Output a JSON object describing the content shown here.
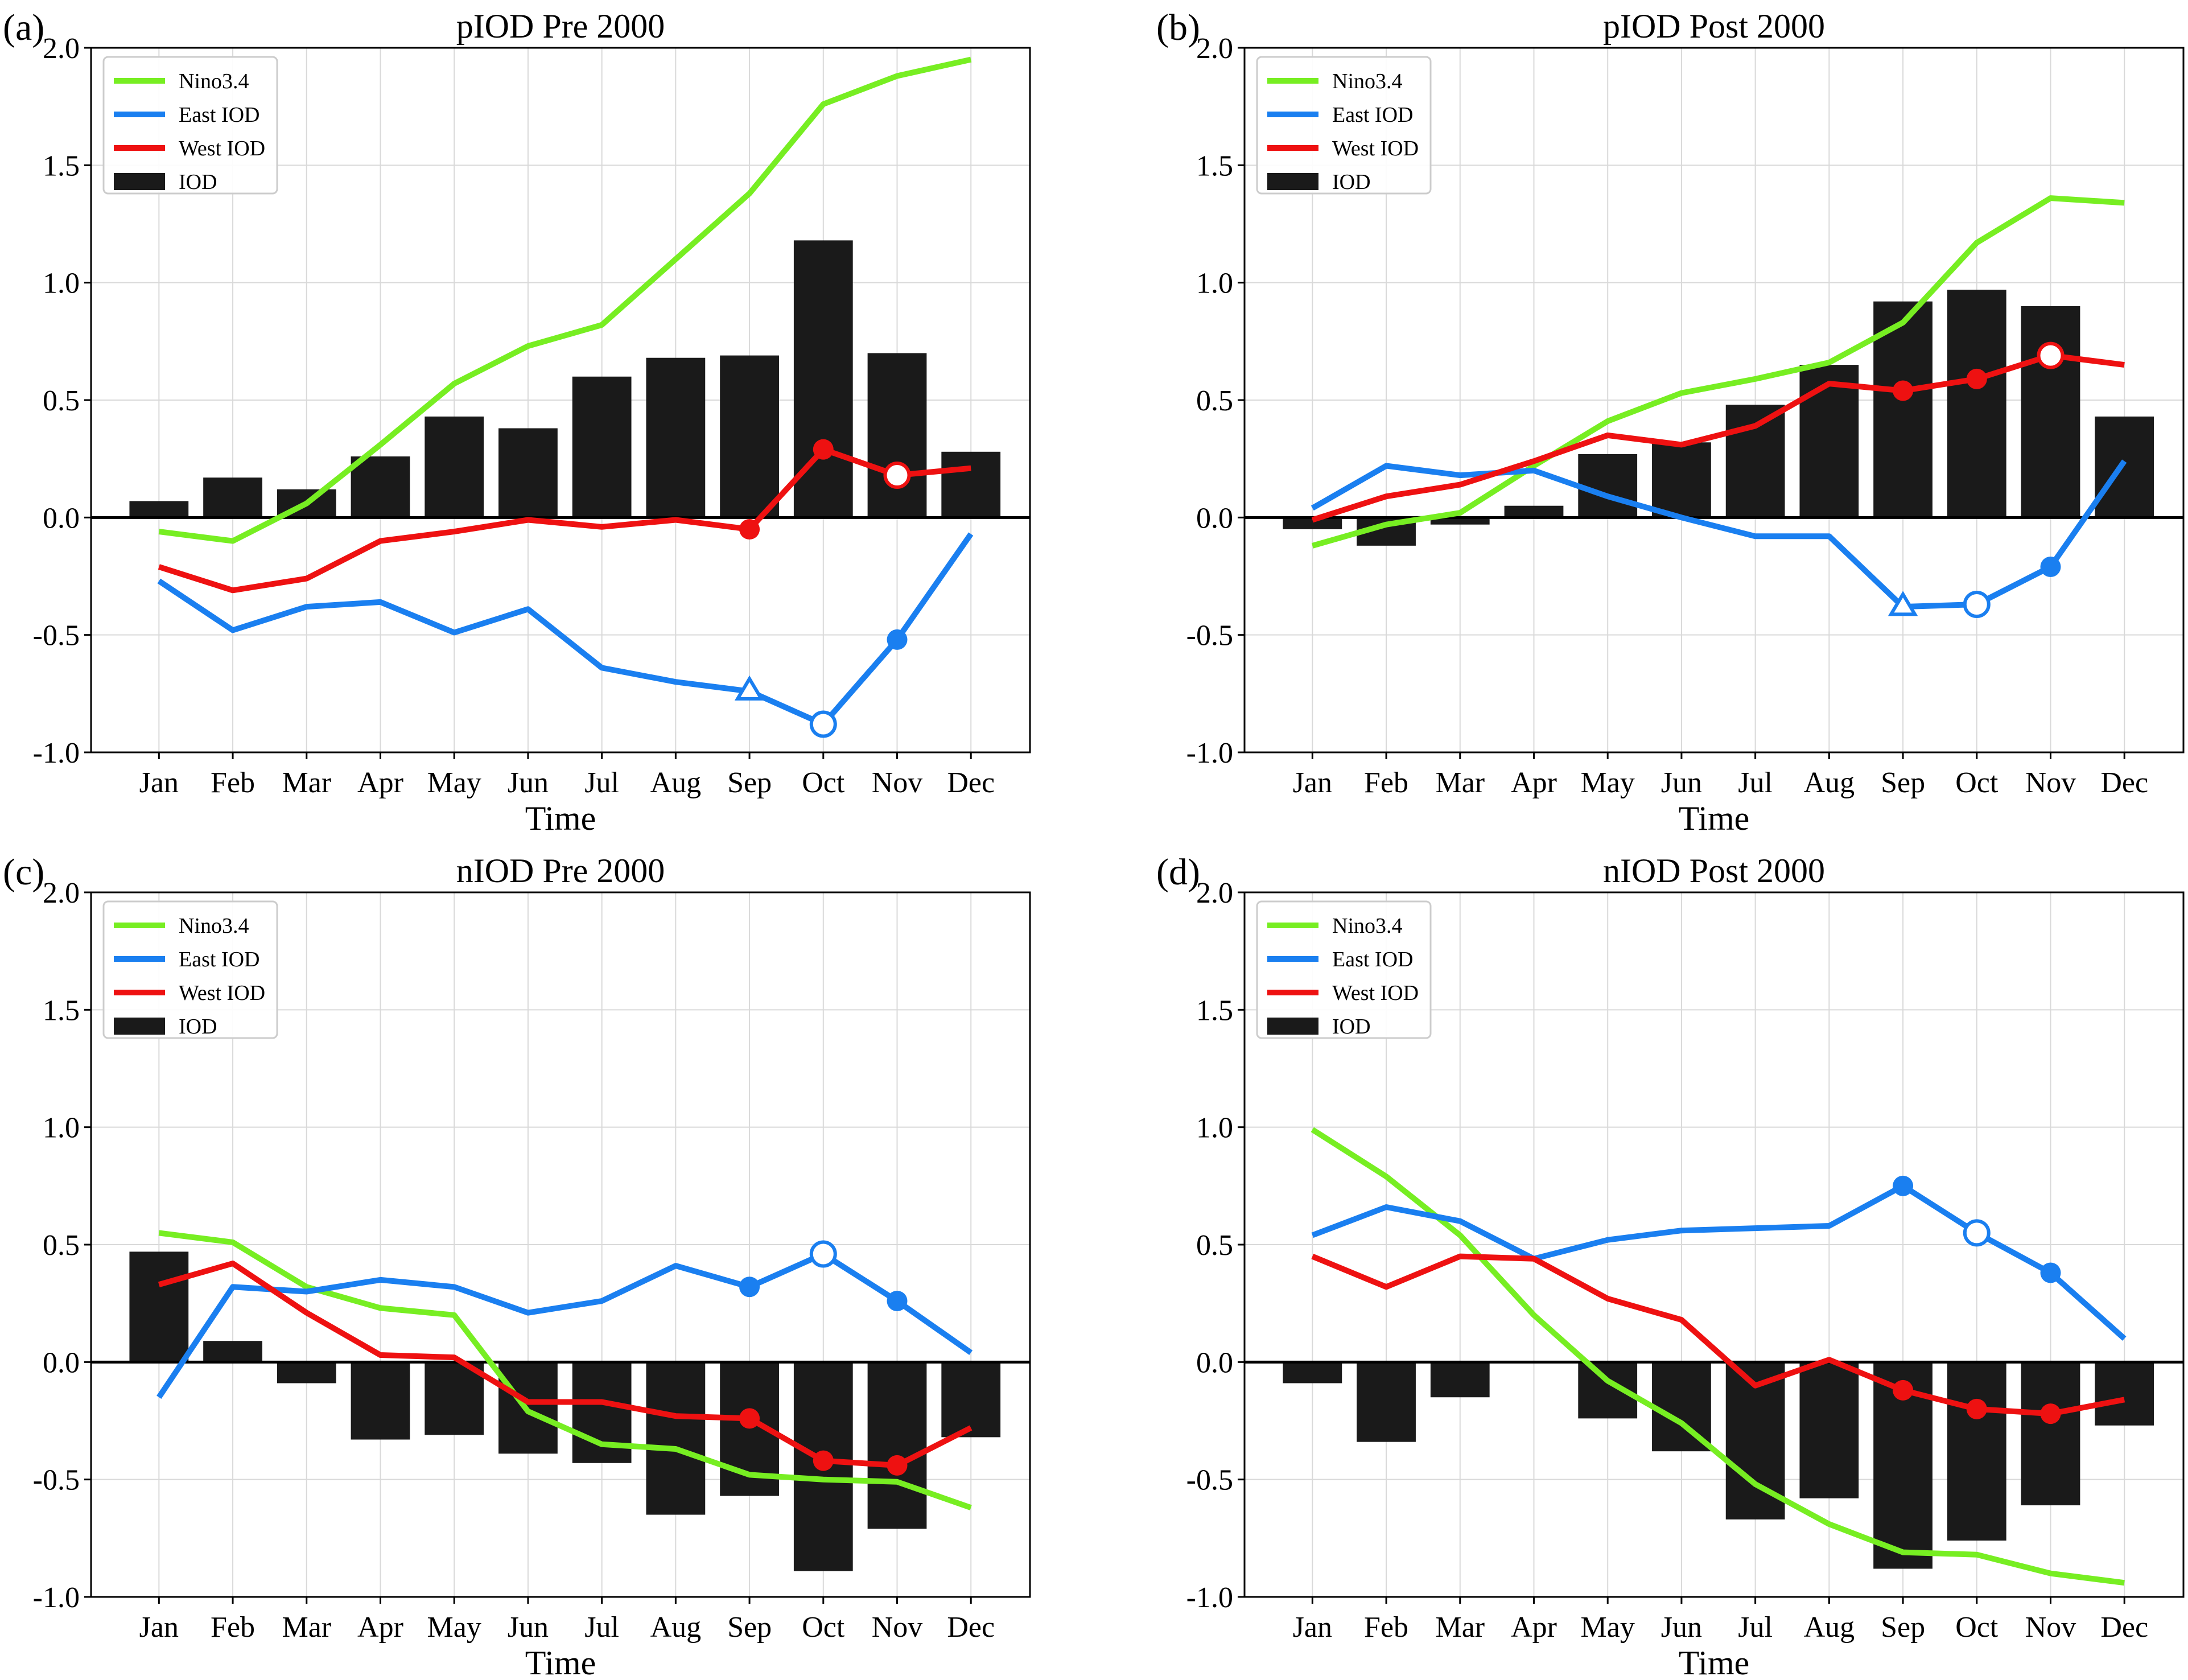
{
  "chart_data": [
    {
      "type": "bar+line",
      "panel_label": "(a)",
      "title": "pIOD Pre 2000",
      "xlabel": "Time",
      "ylabel": "",
      "ylim": [
        -1.0,
        2.0
      ],
      "yticks": [
        "2.0",
        "1.5",
        "1.0",
        "0.5",
        "0.0",
        "-0.5",
        "-1.0"
      ],
      "grid": true,
      "legend_location": "upper-left",
      "categories": [
        "Jan",
        "Feb",
        "Mar",
        "Apr",
        "May",
        "Jun",
        "Jul",
        "Aug",
        "Sep",
        "Oct",
        "Nov",
        "Dec"
      ],
      "bars": {
        "name": "IOD",
        "color": "#1a1a1a",
        "values": [
          0.07,
          0.17,
          0.12,
          0.26,
          0.43,
          0.38,
          0.6,
          0.68,
          0.69,
          1.18,
          0.7,
          0.28
        ]
      },
      "series": [
        {
          "name": "Nino3.4",
          "color": "#77ee22",
          "values": [
            -0.06,
            -0.1,
            0.06,
            0.31,
            0.57,
            0.73,
            0.82,
            1.1,
            1.38,
            1.76,
            1.88,
            1.95
          ],
          "markers": []
        },
        {
          "name": "East IOD",
          "color": "#1a7ff0",
          "values": [
            -0.27,
            -0.48,
            -0.38,
            -0.36,
            -0.49,
            -0.39,
            -0.64,
            -0.7,
            -0.74,
            -0.88,
            -0.52,
            -0.07
          ],
          "markers": [
            {
              "index": 8,
              "symbol": "triangle-open"
            },
            {
              "index": 9,
              "symbol": "circle-open"
            },
            {
              "index": 10,
              "symbol": "circle-filled"
            }
          ]
        },
        {
          "name": "West IOD",
          "color": "#ee1111",
          "values": [
            -0.21,
            -0.31,
            -0.26,
            -0.1,
            -0.06,
            -0.01,
            -0.04,
            -0.01,
            -0.05,
            0.29,
            0.18,
            0.21
          ],
          "markers": [
            {
              "index": 8,
              "symbol": "circle-filled"
            },
            {
              "index": 9,
              "symbol": "circle-filled"
            },
            {
              "index": 10,
              "symbol": "circle-open"
            }
          ]
        }
      ]
    },
    {
      "type": "bar+line",
      "panel_label": "(b)",
      "title": "pIOD Post 2000",
      "xlabel": "Time",
      "ylabel": "",
      "ylim": [
        -1.0,
        2.0
      ],
      "yticks": [
        "2.0",
        "1.5",
        "1.0",
        "0.5",
        "0.0",
        "-0.5",
        "-1.0"
      ],
      "grid": true,
      "legend_location": "upper-left",
      "categories": [
        "Jan",
        "Feb",
        "Mar",
        "Apr",
        "May",
        "Jun",
        "Jul",
        "Aug",
        "Sep",
        "Oct",
        "Nov",
        "Dec"
      ],
      "bars": {
        "name": "IOD",
        "color": "#1a1a1a",
        "values": [
          -0.05,
          -0.12,
          -0.03,
          0.05,
          0.27,
          0.32,
          0.48,
          0.65,
          0.92,
          0.97,
          0.9,
          0.43
        ]
      },
      "series": [
        {
          "name": "Nino3.4",
          "color": "#77ee22",
          "values": [
            -0.12,
            -0.03,
            0.02,
            0.22,
            0.41,
            0.53,
            0.59,
            0.66,
            0.83,
            1.17,
            1.36,
            1.34
          ],
          "markers": []
        },
        {
          "name": "East IOD",
          "color": "#1a7ff0",
          "values": [
            0.04,
            0.22,
            0.18,
            0.2,
            0.09,
            0.0,
            -0.08,
            -0.08,
            -0.38,
            -0.37,
            -0.21,
            0.24
          ],
          "markers": [
            {
              "index": 8,
              "symbol": "triangle-open"
            },
            {
              "index": 9,
              "symbol": "circle-open"
            },
            {
              "index": 10,
              "symbol": "circle-filled"
            }
          ]
        },
        {
          "name": "West IOD",
          "color": "#ee1111",
          "values": [
            -0.01,
            0.09,
            0.14,
            0.24,
            0.35,
            0.31,
            0.39,
            0.57,
            0.54,
            0.59,
            0.69,
            0.65
          ],
          "markers": [
            {
              "index": 8,
              "symbol": "circle-filled"
            },
            {
              "index": 9,
              "symbol": "circle-filled"
            },
            {
              "index": 10,
              "symbol": "circle-open"
            }
          ]
        }
      ]
    },
    {
      "type": "bar+line",
      "panel_label": "(c)",
      "title": "nIOD Pre 2000",
      "xlabel": "Time",
      "ylabel": "",
      "ylim": [
        -1.0,
        2.0
      ],
      "yticks": [
        "2.0",
        "1.5",
        "1.0",
        "0.5",
        "0.0",
        "-0.5",
        "-1.0"
      ],
      "grid": true,
      "legend_location": "upper-left",
      "categories": [
        "Jan",
        "Feb",
        "Mar",
        "Apr",
        "May",
        "Jun",
        "Jul",
        "Aug",
        "Sep",
        "Oct",
        "Nov",
        "Dec"
      ],
      "bars": {
        "name": "IOD",
        "color": "#1a1a1a",
        "values": [
          0.47,
          0.09,
          -0.09,
          -0.33,
          -0.31,
          -0.39,
          -0.43,
          -0.65,
          -0.57,
          -0.89,
          -0.71,
          -0.32
        ]
      },
      "series": [
        {
          "name": "Nino3.4",
          "color": "#77ee22",
          "values": [
            0.55,
            0.51,
            0.32,
            0.23,
            0.2,
            -0.21,
            -0.35,
            -0.37,
            -0.48,
            -0.5,
            -0.51,
            -0.62
          ],
          "markers": []
        },
        {
          "name": "East IOD",
          "color": "#1a7ff0",
          "values": [
            -0.15,
            0.32,
            0.3,
            0.35,
            0.32,
            0.21,
            0.26,
            0.41,
            0.32,
            0.46,
            0.26,
            0.04
          ],
          "markers": [
            {
              "index": 8,
              "symbol": "circle-filled"
            },
            {
              "index": 9,
              "symbol": "circle-open"
            },
            {
              "index": 10,
              "symbol": "circle-filled"
            }
          ]
        },
        {
          "name": "West IOD",
          "color": "#ee1111",
          "values": [
            0.33,
            0.42,
            0.21,
            0.03,
            0.02,
            -0.17,
            -0.17,
            -0.23,
            -0.24,
            -0.42,
            -0.44,
            -0.28
          ],
          "markers": [
            {
              "index": 8,
              "symbol": "circle-filled"
            },
            {
              "index": 9,
              "symbol": "circle-filled"
            },
            {
              "index": 10,
              "symbol": "circle-filled"
            }
          ]
        }
      ]
    },
    {
      "type": "bar+line",
      "panel_label": "(d)",
      "title": "nIOD Post 2000",
      "xlabel": "Time",
      "ylabel": "",
      "ylim": [
        -1.0,
        2.0
      ],
      "yticks": [
        "2.0",
        "1.5",
        "1.0",
        "0.5",
        "0.0",
        "-0.5",
        "-1.0"
      ],
      "grid": true,
      "legend_location": "upper-left",
      "categories": [
        "Jan",
        "Feb",
        "Mar",
        "Apr",
        "May",
        "Jun",
        "Jul",
        "Aug",
        "Sep",
        "Oct",
        "Nov",
        "Dec"
      ],
      "bars": {
        "name": "IOD",
        "color": "#1a1a1a",
        "values": [
          -0.09,
          -0.34,
          -0.15,
          0.0,
          -0.24,
          -0.38,
          -0.67,
          -0.58,
          -0.88,
          -0.76,
          -0.61,
          -0.27
        ]
      },
      "series": [
        {
          "name": "Nino3.4",
          "color": "#77ee22",
          "values": [
            0.99,
            0.79,
            0.54,
            0.2,
            -0.08,
            -0.26,
            -0.52,
            -0.69,
            -0.81,
            -0.82,
            -0.9,
            -0.94
          ],
          "markers": []
        },
        {
          "name": "East IOD",
          "color": "#1a7ff0",
          "values": [
            0.54,
            0.66,
            0.6,
            0.44,
            0.52,
            0.56,
            0.57,
            0.58,
            0.75,
            0.55,
            0.38,
            0.1
          ],
          "markers": [
            {
              "index": 8,
              "symbol": "circle-filled"
            },
            {
              "index": 9,
              "symbol": "circle-open"
            },
            {
              "index": 10,
              "symbol": "circle-filled"
            }
          ]
        },
        {
          "name": "West IOD",
          "color": "#ee1111",
          "values": [
            0.45,
            0.32,
            0.45,
            0.44,
            0.27,
            0.18,
            -0.1,
            0.01,
            -0.12,
            -0.2,
            -0.22,
            -0.16
          ],
          "markers": [
            {
              "index": 8,
              "symbol": "circle-filled"
            },
            {
              "index": 9,
              "symbol": "circle-filled"
            },
            {
              "index": 10,
              "symbol": "circle-filled"
            }
          ]
        }
      ]
    }
  ]
}
